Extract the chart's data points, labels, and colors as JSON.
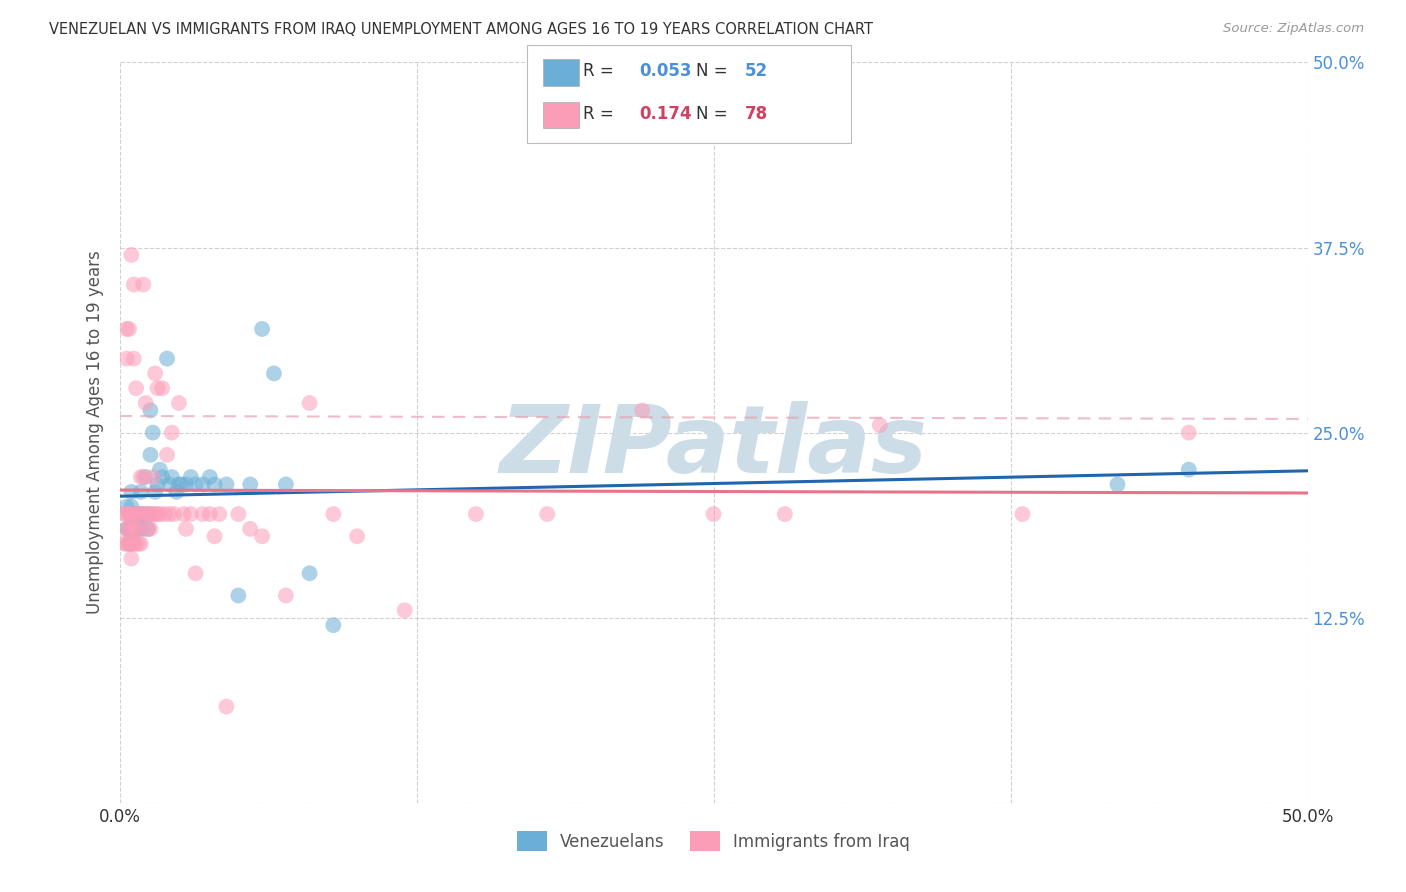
{
  "title": "VENEZUELAN VS IMMIGRANTS FROM IRAQ UNEMPLOYMENT AMONG AGES 16 TO 19 YEARS CORRELATION CHART",
  "source": "Source: ZipAtlas.com",
  "ylabel": "Unemployment Among Ages 16 to 19 years",
  "xlim": [
    0.0,
    0.5
  ],
  "ylim": [
    0.0,
    0.5
  ],
  "xtick_positions": [
    0.0,
    0.125,
    0.25,
    0.375,
    0.5
  ],
  "xtick_labels": [
    "0.0%",
    "",
    "",
    "",
    "50.0%"
  ],
  "ytick_positions": [
    0.0,
    0.125,
    0.25,
    0.375,
    0.5
  ],
  "ytick_labels_right": [
    "",
    "12.5%",
    "25.0%",
    "37.5%",
    "50.0%"
  ],
  "legend_items": [
    {
      "color": "#aecde8",
      "R": "0.053",
      "N": "52",
      "label": "Venezuelans"
    },
    {
      "color": "#f9b8c8",
      "R": "0.174",
      "N": "78",
      "label": "Immigrants from Iraq"
    }
  ],
  "venezuelan_x": [
    0.003,
    0.003,
    0.004,
    0.004,
    0.004,
    0.005,
    0.005,
    0.005,
    0.005,
    0.005,
    0.006,
    0.006,
    0.007,
    0.007,
    0.008,
    0.008,
    0.009,
    0.009,
    0.01,
    0.01,
    0.011,
    0.012,
    0.012,
    0.013,
    0.013,
    0.014,
    0.015,
    0.016,
    0.017,
    0.018,
    0.02,
    0.021,
    0.022,
    0.024,
    0.025,
    0.026,
    0.028,
    0.03,
    0.032,
    0.035,
    0.038,
    0.04,
    0.045,
    0.05,
    0.055,
    0.06,
    0.065,
    0.07,
    0.08,
    0.09,
    0.42,
    0.45
  ],
  "venezuelan_y": [
    0.2,
    0.185,
    0.195,
    0.185,
    0.175,
    0.21,
    0.2,
    0.195,
    0.185,
    0.175,
    0.195,
    0.185,
    0.195,
    0.185,
    0.195,
    0.185,
    0.21,
    0.195,
    0.195,
    0.185,
    0.22,
    0.195,
    0.185,
    0.265,
    0.235,
    0.25,
    0.21,
    0.215,
    0.225,
    0.22,
    0.3,
    0.215,
    0.22,
    0.21,
    0.215,
    0.215,
    0.215,
    0.22,
    0.215,
    0.215,
    0.22,
    0.215,
    0.215,
    0.14,
    0.215,
    0.32,
    0.29,
    0.215,
    0.155,
    0.12,
    0.215,
    0.225
  ],
  "iraq_x": [
    0.002,
    0.002,
    0.003,
    0.003,
    0.003,
    0.003,
    0.003,
    0.004,
    0.004,
    0.004,
    0.004,
    0.005,
    0.005,
    0.005,
    0.005,
    0.005,
    0.006,
    0.006,
    0.006,
    0.006,
    0.006,
    0.007,
    0.007,
    0.007,
    0.007,
    0.008,
    0.008,
    0.008,
    0.009,
    0.009,
    0.009,
    0.01,
    0.01,
    0.011,
    0.011,
    0.012,
    0.012,
    0.013,
    0.013,
    0.014,
    0.014,
    0.015,
    0.015,
    0.016,
    0.016,
    0.017,
    0.018,
    0.019,
    0.02,
    0.021,
    0.022,
    0.023,
    0.025,
    0.027,
    0.028,
    0.03,
    0.032,
    0.035,
    0.038,
    0.04,
    0.042,
    0.045,
    0.05,
    0.055,
    0.06,
    0.07,
    0.08,
    0.09,
    0.1,
    0.12,
    0.15,
    0.18,
    0.22,
    0.25,
    0.28,
    0.32,
    0.38,
    0.45
  ],
  "iraq_y": [
    0.195,
    0.175,
    0.32,
    0.3,
    0.195,
    0.185,
    0.175,
    0.32,
    0.195,
    0.185,
    0.175,
    0.37,
    0.195,
    0.185,
    0.175,
    0.165,
    0.35,
    0.3,
    0.195,
    0.185,
    0.175,
    0.28,
    0.195,
    0.185,
    0.175,
    0.195,
    0.185,
    0.175,
    0.22,
    0.195,
    0.175,
    0.35,
    0.22,
    0.27,
    0.195,
    0.195,
    0.185,
    0.195,
    0.185,
    0.22,
    0.195,
    0.29,
    0.195,
    0.28,
    0.195,
    0.195,
    0.28,
    0.195,
    0.235,
    0.195,
    0.25,
    0.195,
    0.27,
    0.195,
    0.185,
    0.195,
    0.155,
    0.195,
    0.195,
    0.18,
    0.195,
    0.065,
    0.195,
    0.185,
    0.18,
    0.14,
    0.27,
    0.195,
    0.18,
    0.13,
    0.195,
    0.195,
    0.265,
    0.195,
    0.195,
    0.255,
    0.195,
    0.25
  ],
  "blue_color": "#6baed6",
  "pink_color": "#fc9db8",
  "blue_line_color": "#2166ac",
  "pink_line_color": "#e8748a",
  "pink_dash_color": "#e8a0b0",
  "watermark": "ZIPatlas",
  "watermark_color": "#ccdde8",
  "background_color": "#ffffff",
  "grid_color": "#cccccc"
}
